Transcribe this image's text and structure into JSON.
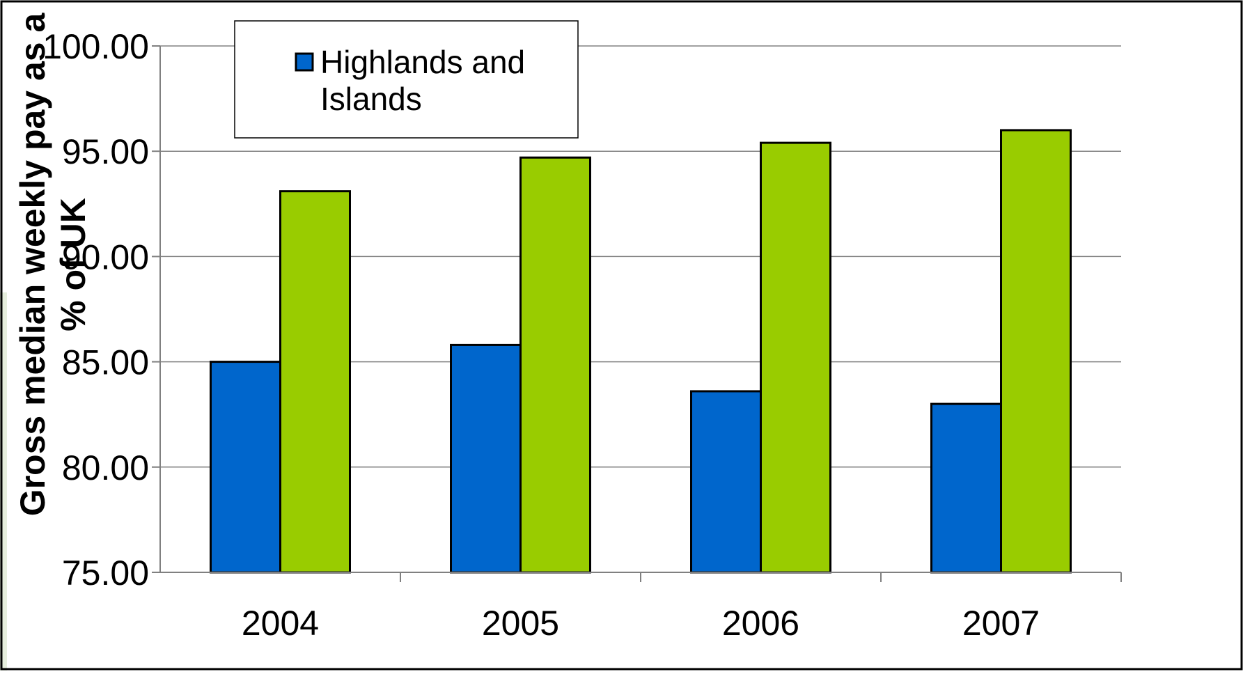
{
  "chart_data": {
    "type": "bar",
    "title": "",
    "xlabel": "",
    "ylabel": "Gross median weekly pay as a % of UK",
    "ylabel_lines": [
      "Gross median weekly pay as a",
      "% of UK"
    ],
    "categories": [
      "2004",
      "2005",
      "2006",
      "2007"
    ],
    "y_tick_labels": [
      "75.00",
      "80.00",
      "85.00",
      "90.00",
      "95.00",
      "100.00"
    ],
    "ylim": [
      75,
      100
    ],
    "grid": true,
    "legend_position": "top-left",
    "series": [
      {
        "name": "Highlands and Islands",
        "legend_lines": [
          "Highlands and",
          "Islands"
        ],
        "color": "#0066CC",
        "values": [
          85.0,
          85.8,
          83.6,
          83.0
        ]
      },
      {
        "color": "#99CC00",
        "values": [
          93.1,
          94.7,
          95.4,
          96.0
        ]
      }
    ]
  },
  "colors": {
    "bar_outline": "#000000",
    "gridline": "#808080",
    "frame": "#000000"
  }
}
